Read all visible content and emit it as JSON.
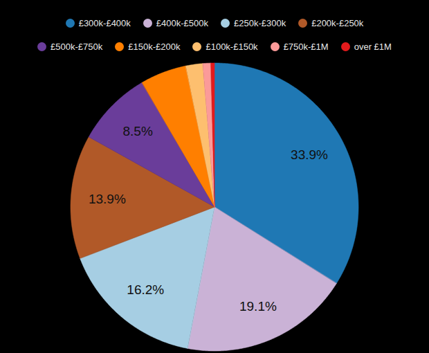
{
  "chart_data": {
    "type": "pie",
    "categories": [
      "£300k-£400k",
      "£400k-£500k",
      "£250k-£300k",
      "£200k-£250k",
      "£500k-£750k",
      "£150k-£200k",
      "£100k-£150k",
      "£750k-£1M",
      "over £1M"
    ],
    "values": [
      33.9,
      19.1,
      16.2,
      13.9,
      8.5,
      5.2,
      1.9,
      0.9,
      0.4
    ],
    "value_labels": [
      "33.9%",
      "19.1%",
      "16.2%",
      "13.9%",
      "8.5%",
      null,
      null,
      null,
      null
    ],
    "colors": [
      "#1f78b4",
      "#cab2d6",
      "#a6cee3",
      "#b15928",
      "#6a3d9a",
      "#ff7f00",
      "#fdbf6f",
      "#fb9a99",
      "#e31a1c"
    ],
    "data_labels": true,
    "legend": "top"
  }
}
